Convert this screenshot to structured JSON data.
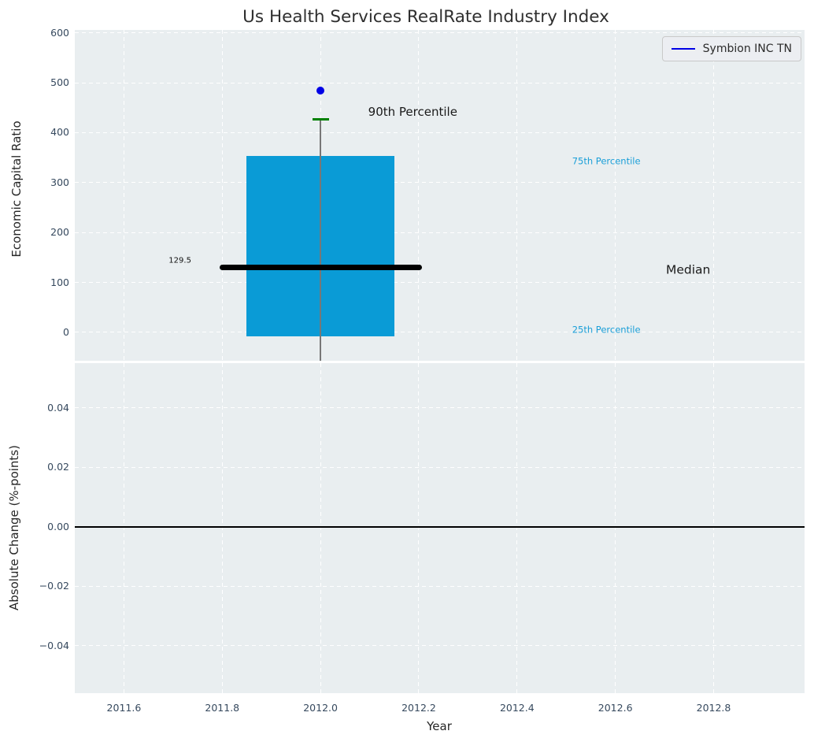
{
  "title": "Us Health Services RealRate Industry Index",
  "legend": {
    "label": "Symbion INC TN"
  },
  "colors": {
    "plot_bg": "#e9eef0",
    "grid": "#ffffff",
    "box_fill": "#0a9bd6",
    "median_line": "#000000",
    "whisker": "#777777",
    "p90_cap": "#008000",
    "point": "#0000e6",
    "legend_line": "#0000e6",
    "tick_label": "#36495e",
    "zero_line": "#000000"
  },
  "chart_data": {
    "type": "box",
    "title": "Us Health Services RealRate Industry Index",
    "xlabel": "Year",
    "xlim": [
      2011.5,
      2012.985
    ],
    "x_ticks": [
      {
        "label": "2011.6",
        "value": 2011.6
      },
      {
        "label": "2011.8",
        "value": 2011.8
      },
      {
        "label": "2012.0",
        "value": 2012.0
      },
      {
        "label": "2012.2",
        "value": 2012.2
      },
      {
        "label": "2012.4",
        "value": 2012.4
      },
      {
        "label": "2012.6",
        "value": 2012.6
      },
      {
        "label": "2012.8",
        "value": 2012.8
      }
    ],
    "top": {
      "ylabel": "Economic Capital Ratio",
      "ylim": [
        -57,
        606
      ],
      "y_ticks": [
        {
          "label": "600",
          "value": 600
        },
        {
          "label": "500",
          "value": 500
        },
        {
          "label": "400",
          "value": 400
        },
        {
          "label": "300",
          "value": 300
        },
        {
          "label": "200",
          "value": 200
        },
        {
          "label": "100",
          "value": 100
        },
        {
          "label": "0",
          "value": 0
        }
      ],
      "box": {
        "x": 2012.0,
        "box_width": 0.3,
        "p25": -8,
        "median": 129.5,
        "p75": 353,
        "p90": 427,
        "whisker_low": -57,
        "cap_width": 0.034,
        "median_line_width": 0.412
      },
      "point": {
        "x": 2012.0,
        "value": 484,
        "series": "Symbion INC TN"
      },
      "annotations": [
        {
          "text": "129.5",
          "x": 2011.737,
          "y": 143,
          "anchor": "right",
          "size": 10,
          "color": "#111111"
        },
        {
          "text": "90th Percentile",
          "x": 2012.097,
          "y": 442,
          "anchor": "left",
          "size": 15,
          "color": "#1a1a1a"
        },
        {
          "text": "75th Percentile",
          "x": 2012.512,
          "y": 342,
          "anchor": "left",
          "size": 11.5,
          "color": "#1b9fd8"
        },
        {
          "text": "Median",
          "x": 2012.703,
          "y": 125,
          "anchor": "left",
          "size": 15.5,
          "color": "#1a1a1a"
        },
        {
          "text": "25th Percentile",
          "x": 2012.512,
          "y": 5,
          "anchor": "left",
          "size": 11.5,
          "color": "#1b9fd8"
        }
      ]
    },
    "bottom": {
      "ylabel": "Absolute Change (%-points)",
      "ylim": [
        -0.056,
        0.055
      ],
      "y_ticks": [
        {
          "label": "0.04",
          "value": 0.04
        },
        {
          "label": "0.02",
          "value": 0.02
        },
        {
          "label": "0.00",
          "value": 0.0
        },
        {
          "label": "−0.02",
          "value": -0.02
        },
        {
          "label": "−0.04",
          "value": -0.04
        }
      ],
      "zero_line": 0.0
    }
  }
}
